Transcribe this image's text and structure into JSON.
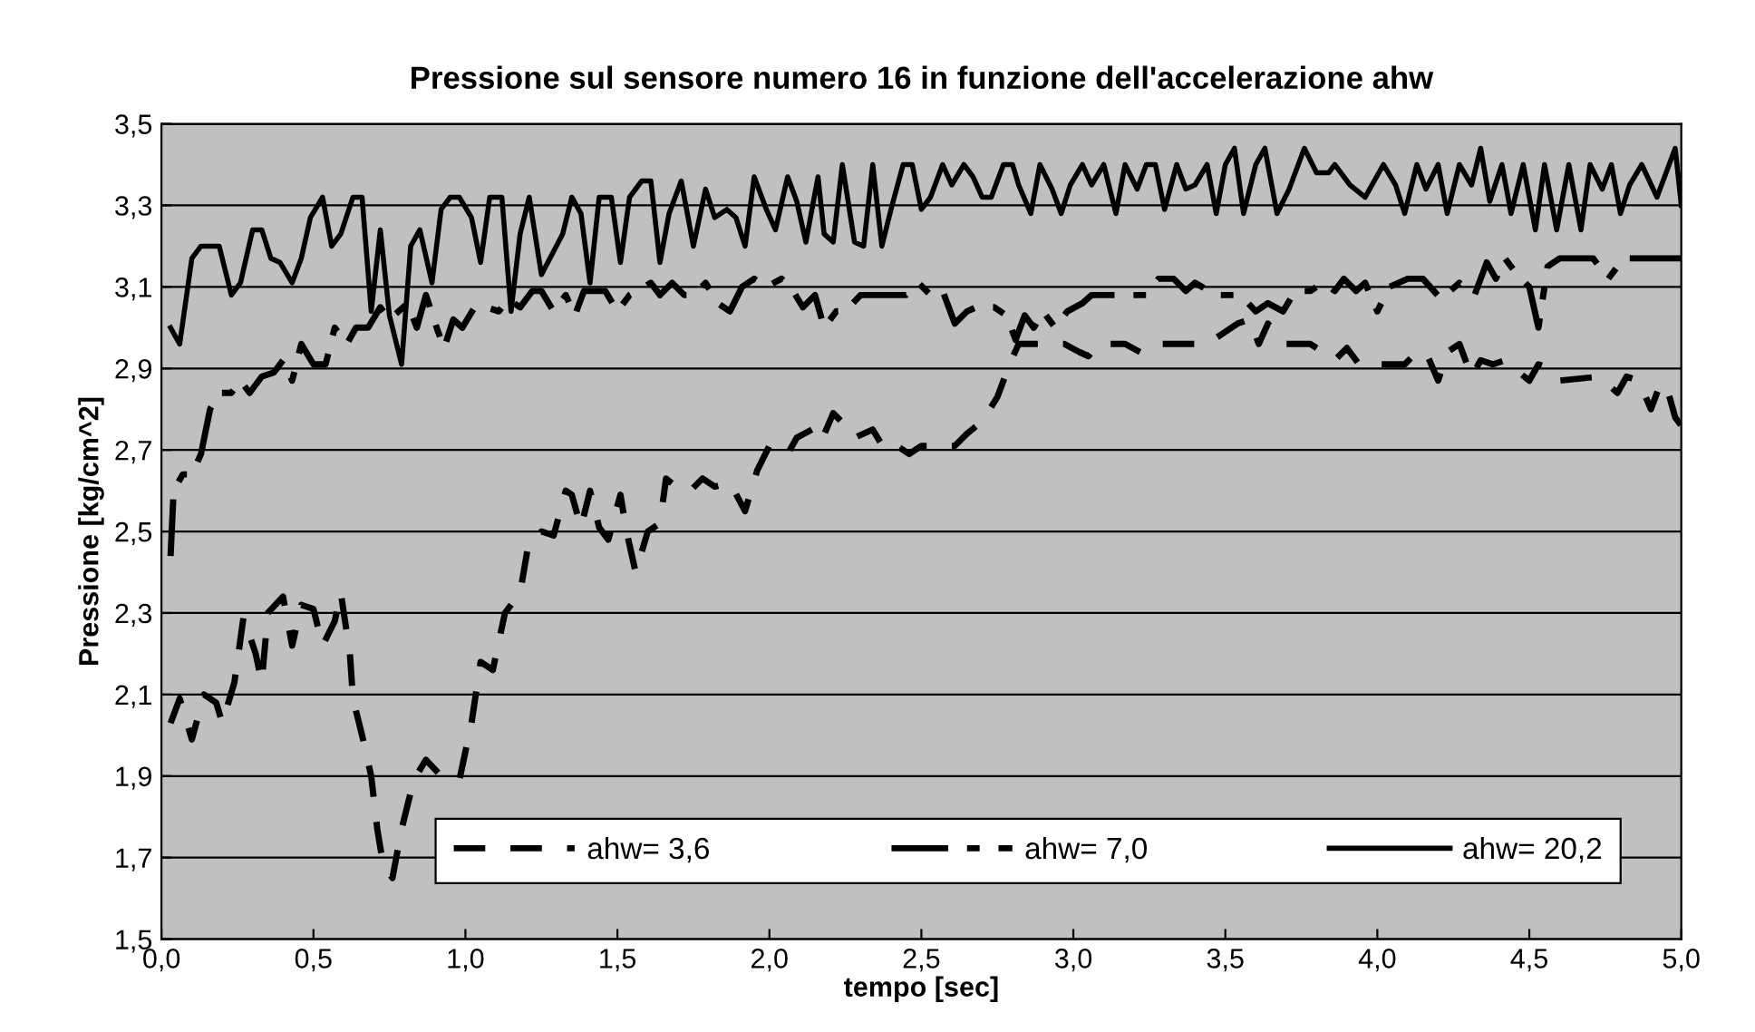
{
  "chart_data": {
    "type": "line",
    "title": "Pressione sul sensore numero 16 in funzione dell'accelerazione ahw",
    "xlabel": "tempo [sec]",
    "ylabel": "Pressione [kg/cm^2]",
    "xlim": [
      0,
      5
    ],
    "ylim": [
      1.5,
      3.5
    ],
    "xticks": [
      {
        "value": 0,
        "label": "0,0"
      },
      {
        "value": 0.5,
        "label": "0,5"
      },
      {
        "value": 1,
        "label": "1,0"
      },
      {
        "value": 1.5,
        "label": "1,5"
      },
      {
        "value": 2,
        "label": "2,0"
      },
      {
        "value": 2.5,
        "label": "2,5"
      },
      {
        "value": 3,
        "label": "3,0"
      },
      {
        "value": 3.5,
        "label": "3,5"
      },
      {
        "value": 4,
        "label": "4,0"
      },
      {
        "value": 4.5,
        "label": "4,5"
      },
      {
        "value": 5,
        "label": "5,0"
      }
    ],
    "yticks": [
      {
        "value": 1.5,
        "label": "1,5"
      },
      {
        "value": 1.7,
        "label": "1,7"
      },
      {
        "value": 1.9,
        "label": "1,9"
      },
      {
        "value": 2.1,
        "label": "2,1"
      },
      {
        "value": 2.3,
        "label": "2,3"
      },
      {
        "value": 2.5,
        "label": "2,5"
      },
      {
        "value": 2.7,
        "label": "2,7"
      },
      {
        "value": 2.9,
        "label": "2,9"
      },
      {
        "value": 3.1,
        "label": "3,1"
      },
      {
        "value": 3.3,
        "label": "3,3"
      },
      {
        "value": 3.5,
        "label": "3,5"
      }
    ],
    "grid": "y",
    "legend": "bottom right",
    "marker": "none",
    "series": [
      {
        "name": "ahw= 3,6",
        "color": "#000000",
        "line_style": "dashed",
        "x": [
          0.03,
          0.06,
          0.1,
          0.14,
          0.18,
          0.2,
          0.24,
          0.27,
          0.31,
          0.33,
          0.35,
          0.4,
          0.43,
          0.46,
          0.5,
          0.53,
          0.57,
          0.59,
          0.62,
          0.63,
          0.66,
          0.69,
          0.71,
          0.73,
          0.76,
          0.79,
          0.83,
          0.87,
          0.92,
          0.98,
          1.02,
          1.05,
          1.09,
          1.13,
          1.18,
          1.21,
          1.25,
          1.29,
          1.33,
          1.35,
          1.38,
          1.41,
          1.44,
          1.47,
          1.51,
          1.53,
          1.56,
          1.6,
          1.64,
          1.66,
          1.71,
          1.74,
          1.78,
          1.82,
          1.87,
          1.92,
          1.96,
          2.0,
          2.06,
          2.09,
          2.14,
          2.17,
          2.21,
          2.25,
          2.28,
          2.34,
          2.38,
          2.42,
          2.46,
          2.5,
          2.61,
          2.65,
          2.7,
          2.75,
          2.79,
          2.82,
          2.91,
          2.97,
          3.02,
          3.05,
          3.08,
          3.17,
          3.22,
          3.26,
          3.44,
          3.48,
          3.54,
          3.58,
          3.61,
          3.64,
          3.7,
          3.78,
          3.82,
          3.86,
          3.9,
          3.94,
          4.09,
          4.13,
          4.16,
          4.2,
          4.23,
          4.27,
          4.31,
          4.34,
          4.38,
          4.42,
          4.45,
          4.5,
          4.53,
          4.57,
          4.6,
          4.73,
          4.79,
          4.82,
          4.86,
          4.9,
          4.93,
          4.95,
          4.98,
          5.0
        ],
        "values": [
          2.03,
          2.09,
          1.99,
          2.1,
          2.08,
          2.03,
          2.13,
          2.29,
          2.2,
          2.13,
          2.3,
          2.34,
          2.22,
          2.32,
          2.31,
          2.22,
          2.28,
          2.35,
          2.2,
          2.09,
          2.0,
          1.9,
          1.77,
          1.68,
          1.65,
          1.77,
          1.89,
          1.94,
          1.9,
          1.89,
          2.03,
          2.18,
          2.16,
          2.3,
          2.35,
          2.48,
          2.5,
          2.49,
          2.6,
          2.59,
          2.51,
          2.6,
          2.51,
          2.48,
          2.59,
          2.5,
          2.4,
          2.5,
          2.52,
          2.63,
          2.6,
          2.6,
          2.63,
          2.61,
          2.62,
          2.55,
          2.65,
          2.71,
          2.69,
          2.73,
          2.75,
          2.72,
          2.79,
          2.76,
          2.73,
          2.75,
          2.7,
          2.71,
          2.69,
          2.71,
          2.71,
          2.74,
          2.77,
          2.83,
          2.91,
          2.96,
          2.96,
          2.96,
          2.94,
          2.93,
          2.96,
          2.96,
          2.94,
          2.96,
          2.96,
          2.98,
          3.01,
          3.02,
          2.96,
          3.01,
          2.96,
          2.96,
          2.94,
          2.92,
          2.95,
          2.91,
          2.91,
          2.94,
          2.94,
          2.87,
          2.94,
          2.96,
          2.88,
          2.92,
          2.91,
          2.92,
          2.9,
          2.87,
          2.91,
          2.9,
          2.87,
          2.88,
          2.84,
          2.88,
          2.87,
          2.8,
          2.86,
          2.86,
          2.78,
          2.76
        ]
      },
      {
        "name": "ahw= 7,0",
        "color": "#000000",
        "line_style": "dashdot",
        "x": [
          0.03,
          0.04,
          0.07,
          0.1,
          0.13,
          0.16,
          0.19,
          0.23,
          0.26,
          0.29,
          0.33,
          0.37,
          0.4,
          0.43,
          0.46,
          0.5,
          0.54,
          0.57,
          0.61,
          0.64,
          0.68,
          0.72,
          0.75,
          0.81,
          0.84,
          0.87,
          0.91,
          0.93,
          0.96,
          0.99,
          1.03,
          1.07,
          1.11,
          1.14,
          1.18,
          1.22,
          1.25,
          1.29,
          1.33,
          1.36,
          1.39,
          1.46,
          1.5,
          1.54,
          1.61,
          1.64,
          1.68,
          1.72,
          1.75,
          1.79,
          1.83,
          1.87,
          1.91,
          1.95,
          1.99,
          2.04,
          2.07,
          2.11,
          2.15,
          2.18,
          2.22,
          2.25,
          2.3,
          2.45,
          2.49,
          2.53,
          2.57,
          2.61,
          2.65,
          2.68,
          2.74,
          2.78,
          2.81,
          2.84,
          2.87,
          2.9,
          2.94,
          2.98,
          3.03,
          3.06,
          3.2,
          3.24,
          3.28,
          3.33,
          3.37,
          3.4,
          3.47,
          3.55,
          3.6,
          3.64,
          3.69,
          3.73,
          3.78,
          3.82,
          3.86,
          3.89,
          3.93,
          3.96,
          4.0,
          4.04,
          4.1,
          4.15,
          4.21,
          4.27,
          4.32,
          4.36,
          4.39,
          4.42,
          4.46,
          4.5,
          4.53,
          4.56,
          4.6,
          4.71,
          4.76,
          4.81,
          5.0
        ],
        "values": [
          2.44,
          2.6,
          2.64,
          2.64,
          2.69,
          2.8,
          2.84,
          2.84,
          2.87,
          2.84,
          2.88,
          2.89,
          2.92,
          2.87,
          2.96,
          2.91,
          2.91,
          3.0,
          2.96,
          3.0,
          3.0,
          3.05,
          3.02,
          3.06,
          3.0,
          3.08,
          2.99,
          2.95,
          3.02,
          3.0,
          3.05,
          3.05,
          3.04,
          3.07,
          3.05,
          3.09,
          3.09,
          3.04,
          3.08,
          3.03,
          3.09,
          3.09,
          3.04,
          3.08,
          3.11,
          3.08,
          3.11,
          3.08,
          3.08,
          3.11,
          3.06,
          3.04,
          3.1,
          3.12,
          3.1,
          3.12,
          3.1,
          3.05,
          3.08,
          3.0,
          3.04,
          3.04,
          3.08,
          3.08,
          3.11,
          3.08,
          3.09,
          3.01,
          3.04,
          3.05,
          3.05,
          3.03,
          2.97,
          3.03,
          3.0,
          3.04,
          3.0,
          3.04,
          3.06,
          3.08,
          3.08,
          3.08,
          3.12,
          3.12,
          3.09,
          3.11,
          3.08,
          3.08,
          3.04,
          3.06,
          3.04,
          3.09,
          3.09,
          3.11,
          3.09,
          3.12,
          3.09,
          3.11,
          3.04,
          3.1,
          3.12,
          3.12,
          3.07,
          3.11,
          3.08,
          3.16,
          3.12,
          3.17,
          3.13,
          3.1,
          3.0,
          3.15,
          3.17,
          3.17,
          3.12,
          3.17,
          3.17
        ]
      },
      {
        "name": "ahw= 20,2",
        "color": "#000000",
        "line_style": "solid",
        "x": [
          0.03,
          0.06,
          0.1,
          0.13,
          0.19,
          0.23,
          0.26,
          0.3,
          0.33,
          0.36,
          0.39,
          0.43,
          0.46,
          0.49,
          0.53,
          0.56,
          0.59,
          0.63,
          0.66,
          0.69,
          0.72,
          0.75,
          0.79,
          0.82,
          0.85,
          0.89,
          0.92,
          0.95,
          0.98,
          1.02,
          1.05,
          1.08,
          1.12,
          1.15,
          1.18,
          1.21,
          1.25,
          1.32,
          1.35,
          1.38,
          1.41,
          1.44,
          1.48,
          1.51,
          1.54,
          1.58,
          1.61,
          1.64,
          1.67,
          1.71,
          1.75,
          1.79,
          1.82,
          1.86,
          1.89,
          1.92,
          1.95,
          1.99,
          2.02,
          2.06,
          2.09,
          2.12,
          2.16,
          2.18,
          2.21,
          2.24,
          2.28,
          2.31,
          2.34,
          2.37,
          2.4,
          2.44,
          2.47,
          2.5,
          2.53,
          2.57,
          2.6,
          2.64,
          2.67,
          2.7,
          2.73,
          2.77,
          2.8,
          2.82,
          2.86,
          2.89,
          2.93,
          2.96,
          2.99,
          3.03,
          3.06,
          3.1,
          3.14,
          3.17,
          3.21,
          3.24,
          3.27,
          3.3,
          3.34,
          3.37,
          3.4,
          3.44,
          3.47,
          3.5,
          3.53,
          3.56,
          3.6,
          3.63,
          3.67,
          3.71,
          3.76,
          3.8,
          3.84,
          3.86,
          3.91,
          3.96,
          4.02,
          4.06,
          4.09,
          4.13,
          4.16,
          4.2,
          4.23,
          4.27,
          4.31,
          4.34,
          4.37,
          4.41,
          4.44,
          4.48,
          4.52,
          4.55,
          4.59,
          4.63,
          4.67,
          4.7,
          4.74,
          4.77,
          4.8,
          4.83,
          4.87,
          4.92,
          4.96,
          4.98,
          5.0
        ],
        "values": [
          3.0,
          2.96,
          3.17,
          3.2,
          3.2,
          3.08,
          3.11,
          3.24,
          3.24,
          3.17,
          3.16,
          3.11,
          3.17,
          3.27,
          3.32,
          3.2,
          3.23,
          3.32,
          3.32,
          3.04,
          3.24,
          3.03,
          2.91,
          3.2,
          3.24,
          3.11,
          3.29,
          3.32,
          3.32,
          3.27,
          3.16,
          3.32,
          3.32,
          3.04,
          3.23,
          3.32,
          3.13,
          3.23,
          3.32,
          3.28,
          3.11,
          3.32,
          3.32,
          3.16,
          3.32,
          3.36,
          3.36,
          3.16,
          3.28,
          3.36,
          3.2,
          3.34,
          3.27,
          3.29,
          3.27,
          3.2,
          3.37,
          3.29,
          3.24,
          3.37,
          3.31,
          3.21,
          3.37,
          3.23,
          3.21,
          3.4,
          3.21,
          3.2,
          3.4,
          3.2,
          3.29,
          3.4,
          3.4,
          3.29,
          3.32,
          3.4,
          3.35,
          3.4,
          3.37,
          3.32,
          3.32,
          3.4,
          3.4,
          3.35,
          3.28,
          3.4,
          3.34,
          3.28,
          3.35,
          3.4,
          3.35,
          3.4,
          3.28,
          3.4,
          3.34,
          3.4,
          3.4,
          3.29,
          3.4,
          3.34,
          3.35,
          3.4,
          3.28,
          3.4,
          3.44,
          3.28,
          3.4,
          3.44,
          3.28,
          3.34,
          3.44,
          3.38,
          3.38,
          3.4,
          3.35,
          3.32,
          3.4,
          3.35,
          3.28,
          3.4,
          3.34,
          3.4,
          3.28,
          3.4,
          3.35,
          3.44,
          3.31,
          3.4,
          3.28,
          3.4,
          3.24,
          3.4,
          3.24,
          3.4,
          3.24,
          3.4,
          3.34,
          3.4,
          3.28,
          3.35,
          3.4,
          3.32,
          3.4,
          3.44,
          3.3
        ]
      }
    ]
  }
}
